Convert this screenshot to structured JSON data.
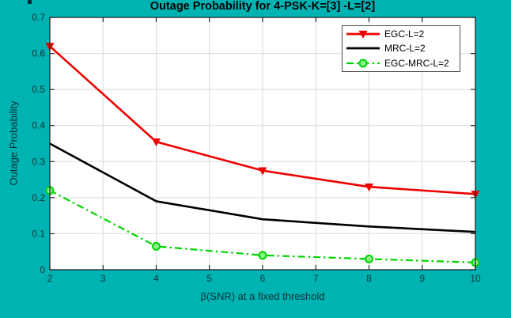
{
  "figure": {
    "background_color": "#00b3b3",
    "plot_background": "#ffffff",
    "grid_color": "#d9d9d9",
    "axis_color": "#262626",
    "tick_text_color": "#0d3335"
  },
  "chart_data": {
    "type": "line",
    "title": "Outage Probability for 4-PSK-K=[3] -L=[2]",
    "xlabel": "β(SNR) at a fixed threshold",
    "ylabel": "Outage Probability",
    "xlim": [
      2,
      10
    ],
    "ylim": [
      0,
      0.7
    ],
    "xticks": [
      2,
      3,
      4,
      5,
      6,
      7,
      8,
      9,
      10
    ],
    "yticks": [
      0,
      0.1,
      0.2,
      0.3,
      0.4,
      0.5,
      0.6,
      0.7
    ],
    "grid": true,
    "legend_position": "top-right",
    "x": [
      2,
      4,
      6,
      8,
      10
    ],
    "series": [
      {
        "name": "EGC-L=2",
        "color": "#ee0000",
        "line": "solid",
        "marker": "triangle-down",
        "marker_fill": "#ee0000",
        "values": [
          0.62,
          0.355,
          0.275,
          0.23,
          0.21
        ]
      },
      {
        "name": "MRC-L=2",
        "color": "#000000",
        "line": "solid",
        "marker": "none",
        "marker_fill": "#000000",
        "values": [
          0.35,
          0.19,
          0.14,
          0.12,
          0.105
        ]
      },
      {
        "name": "EGC-MRC-L=2",
        "color": "#00d500",
        "line": "dash-dot",
        "marker": "circle",
        "marker_fill": "#8bef8b",
        "values": [
          0.22,
          0.065,
          0.04,
          0.03,
          0.02
        ]
      }
    ]
  }
}
